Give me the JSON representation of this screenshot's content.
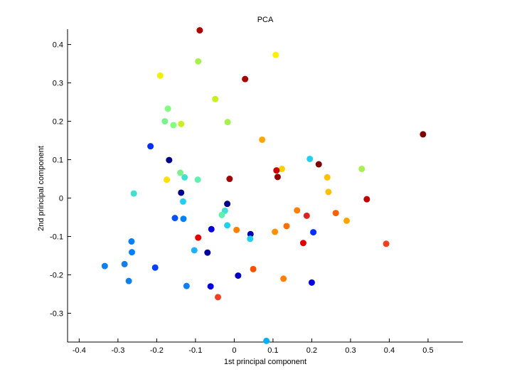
{
  "chart_data": {
    "type": "scatter",
    "title": "PCA",
    "xlabel": "1st principal component",
    "ylabel": "2nd principal component",
    "xlim": [
      -0.43,
      0.59
    ],
    "ylim": [
      -0.375,
      0.44
    ],
    "xticks": [
      -0.4,
      -0.3,
      -0.2,
      -0.1,
      0,
      0.1,
      0.2,
      0.3,
      0.4,
      0.5
    ],
    "xtick_labels": [
      "-0.4",
      "-0.3",
      "-0.2",
      "-0.1",
      "0",
      "0.1",
      "0.2",
      "0.3",
      "0.4",
      "0.5"
    ],
    "yticks": [
      -0.3,
      -0.2,
      -0.1,
      0,
      0.1,
      0.2,
      0.3,
      0.4
    ],
    "ytick_labels": [
      "-0.3",
      "-0.2",
      "-0.1",
      "0",
      "0.1",
      "0.2",
      "0.3",
      "0.4"
    ],
    "grid": false,
    "points": [
      {
        "x": -0.089,
        "y": 0.437,
        "color": "#b00000"
      },
      {
        "x": 0.107,
        "y": 0.373,
        "color": "#ffee00"
      },
      {
        "x": -0.191,
        "y": 0.319,
        "color": "#f0f000"
      },
      {
        "x": -0.093,
        "y": 0.356,
        "color": "#a8f050"
      },
      {
        "x": 0.028,
        "y": 0.31,
        "color": "#a80000"
      },
      {
        "x": -0.049,
        "y": 0.258,
        "color": "#c8f020"
      },
      {
        "x": -0.171,
        "y": 0.233,
        "color": "#80ff80"
      },
      {
        "x": -0.179,
        "y": 0.2,
        "color": "#7cf08c"
      },
      {
        "x": -0.157,
        "y": 0.19,
        "color": "#80ff80"
      },
      {
        "x": -0.137,
        "y": 0.193,
        "color": "#c8f020"
      },
      {
        "x": -0.017,
        "y": 0.198,
        "color": "#a8f050"
      },
      {
        "x": 0.072,
        "y": 0.152,
        "color": "#ffa500"
      },
      {
        "x": 0.487,
        "y": 0.166,
        "color": "#800000"
      },
      {
        "x": -0.216,
        "y": 0.135,
        "color": "#0030ff"
      },
      {
        "x": -0.168,
        "y": 0.099,
        "color": "#000090"
      },
      {
        "x": 0.195,
        "y": 0.102,
        "color": "#20d0f0"
      },
      {
        "x": 0.218,
        "y": 0.088,
        "color": "#800000"
      },
      {
        "x": 0.329,
        "y": 0.076,
        "color": "#a8f050"
      },
      {
        "x": 0.123,
        "y": 0.076,
        "color": "#ffd000"
      },
      {
        "x": 0.109,
        "y": 0.072,
        "color": "#d00000"
      },
      {
        "x": -0.139,
        "y": 0.066,
        "color": "#7cf08c"
      },
      {
        "x": -0.128,
        "y": 0.054,
        "color": "#40e0d0"
      },
      {
        "x": -0.094,
        "y": 0.048,
        "color": "#60f0b0"
      },
      {
        "x": -0.174,
        "y": 0.048,
        "color": "#ffe000"
      },
      {
        "x": -0.012,
        "y": 0.05,
        "color": "#a00000"
      },
      {
        "x": 0.112,
        "y": 0.055,
        "color": "#900000"
      },
      {
        "x": 0.24,
        "y": 0.054,
        "color": "#ffc000"
      },
      {
        "x": -0.259,
        "y": 0.012,
        "color": "#40e0d0"
      },
      {
        "x": -0.137,
        "y": 0.014,
        "color": "#000090"
      },
      {
        "x": 0.243,
        "y": 0.016,
        "color": "#ffc000"
      },
      {
        "x": 0.342,
        "y": -0.003,
        "color": "#c00000"
      },
      {
        "x": -0.132,
        "y": -0.009,
        "color": "#20d0f0"
      },
      {
        "x": -0.018,
        "y": -0.015,
        "color": "#000090"
      },
      {
        "x": -0.024,
        "y": -0.033,
        "color": "#40e0d0"
      },
      {
        "x": -0.032,
        "y": -0.044,
        "color": "#60f0b0"
      },
      {
        "x": 0.162,
        "y": -0.032,
        "color": "#ff8000"
      },
      {
        "x": 0.262,
        "y": -0.039,
        "color": "#ff6000"
      },
      {
        "x": 0.187,
        "y": -0.046,
        "color": "#e02020"
      },
      {
        "x": -0.153,
        "y": -0.052,
        "color": "#0050ff"
      },
      {
        "x": -0.131,
        "y": -0.054,
        "color": "#0080ff"
      },
      {
        "x": 0.29,
        "y": -0.059,
        "color": "#ffa500"
      },
      {
        "x": -0.018,
        "y": -0.071,
        "color": "#20d0f0"
      },
      {
        "x": 0.135,
        "y": -0.073,
        "color": "#ff7000"
      },
      {
        "x": -0.059,
        "y": -0.081,
        "color": "#0000e0"
      },
      {
        "x": 0.006,
        "y": -0.083,
        "color": "#ff8000"
      },
      {
        "x": 0.105,
        "y": -0.088,
        "color": "#ff9000"
      },
      {
        "x": 0.204,
        "y": -0.089,
        "color": "#0030ff"
      },
      {
        "x": 0.042,
        "y": -0.094,
        "color": "#0000b0"
      },
      {
        "x": -0.093,
        "y": -0.103,
        "color": "#e00000"
      },
      {
        "x": 0.041,
        "y": -0.106,
        "color": "#20d0f0"
      },
      {
        "x": -0.265,
        "y": -0.113,
        "color": "#0080ff"
      },
      {
        "x": 0.178,
        "y": -0.117,
        "color": "#e00000"
      },
      {
        "x": 0.392,
        "y": -0.119,
        "color": "#f04020"
      },
      {
        "x": -0.103,
        "y": -0.136,
        "color": "#20b0ff"
      },
      {
        "x": -0.264,
        "y": -0.141,
        "color": "#0080ff"
      },
      {
        "x": -0.069,
        "y": -0.142,
        "color": "#0000a0"
      },
      {
        "x": -0.334,
        "y": -0.177,
        "color": "#1080f0"
      },
      {
        "x": -0.283,
        "y": -0.172,
        "color": "#1080f0"
      },
      {
        "x": -0.204,
        "y": -0.181,
        "color": "#0040ff"
      },
      {
        "x": 0.049,
        "y": -0.185,
        "color": "#ff5000"
      },
      {
        "x": 0.01,
        "y": -0.202,
        "color": "#0000c0"
      },
      {
        "x": 0.127,
        "y": -0.21,
        "color": "#ff8000"
      },
      {
        "x": -0.272,
        "y": -0.216,
        "color": "#1080f0"
      },
      {
        "x": 0.2,
        "y": -0.22,
        "color": "#0000e0"
      },
      {
        "x": -0.123,
        "y": -0.229,
        "color": "#1080f0"
      },
      {
        "x": -0.061,
        "y": -0.23,
        "color": "#0000e0"
      },
      {
        "x": -0.042,
        "y": -0.258,
        "color": "#f04020"
      },
      {
        "x": 0.083,
        "y": -0.372,
        "color": "#00b0ff"
      }
    ]
  }
}
